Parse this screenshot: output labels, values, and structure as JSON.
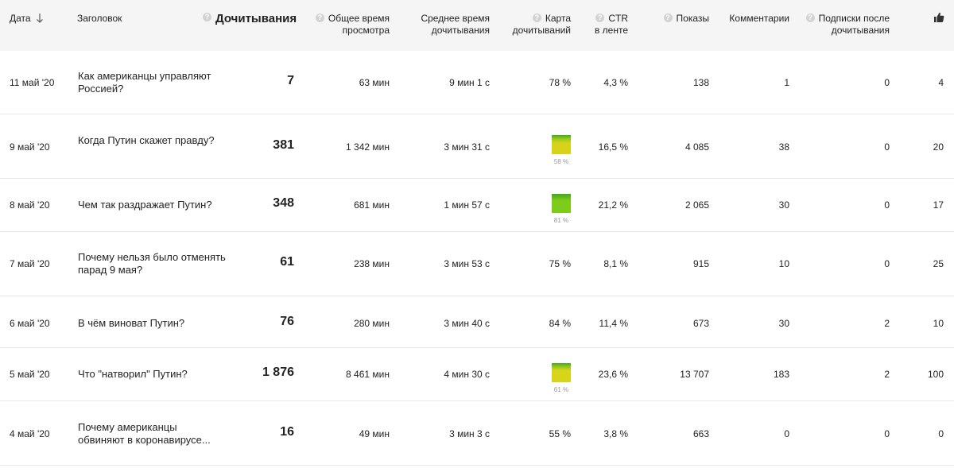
{
  "headers": {
    "date": "Дата",
    "title": "Заголовок",
    "reads": "Дочитывания",
    "total_time_1": "Общее время",
    "total_time_2": "просмотра",
    "avg_time_1": "Среднее время",
    "avg_time_2": "дочитывания",
    "map_1": "Карта",
    "map_2": "дочитываний",
    "ctr_1": "CTR",
    "ctr_2": "в ленте",
    "views": "Показы",
    "comments": "Комментарии",
    "subs_1": "Подписки после",
    "subs_2": "дочитывания",
    "help_mark": "?"
  },
  "colors": {
    "header_bg": "#f5f5f5",
    "map_58": "#d9d21a",
    "map_81": "#7dcc1a",
    "map_61": "#d8d41a"
  },
  "rows": [
    {
      "date": "11 май '20",
      "title": "Как американцы управляют Россией?",
      "reads": "7",
      "total_time": "63 мин",
      "avg_time": "9 мин 1 с",
      "map": "78 %",
      "map_pct": "",
      "ctr": "4,3 %",
      "views": "138",
      "comments": "1",
      "subs": "0",
      "likes": "4"
    },
    {
      "date": "9 май '20",
      "title": "Когда Путин скажет правду?",
      "reads": "381",
      "total_time": "1 342 мин",
      "avg_time": "3 мин 31 с",
      "map": "",
      "map_pct": "58 %",
      "ctr": "16,5 %",
      "views": "4 085",
      "comments": "38",
      "subs": "0",
      "likes": "20"
    },
    {
      "date": "8 май '20",
      "title": "Чем так раздражает Путин?",
      "reads": "348",
      "total_time": "681 мин",
      "avg_time": "1 мин 57 с",
      "map": "",
      "map_pct": "81 %",
      "ctr": "21,2 %",
      "views": "2 065",
      "comments": "30",
      "subs": "0",
      "likes": "17"
    },
    {
      "date": "7 май '20",
      "title": "Почему нельзя было отменять парад 9 мая?",
      "reads": "61",
      "total_time": "238 мин",
      "avg_time": "3 мин 53 с",
      "map": "75 %",
      "map_pct": "",
      "ctr": "8,1 %",
      "views": "915",
      "comments": "10",
      "subs": "0",
      "likes": "25"
    },
    {
      "date": "6 май '20",
      "title": "В чём виноват Путин?",
      "reads": "76",
      "total_time": "280 мин",
      "avg_time": "3 мин 40 с",
      "map": "84 %",
      "map_pct": "",
      "ctr": "11,4 %",
      "views": "673",
      "comments": "30",
      "subs": "2",
      "likes": "10"
    },
    {
      "date": "5 май '20",
      "title": "Что \"натворил\" Путин?",
      "reads": "1 876",
      "total_time": "8 461 мин",
      "avg_time": "4 мин 30 с",
      "map": "",
      "map_pct": "61 %",
      "ctr": "23,6 %",
      "views": "13 707",
      "comments": "183",
      "subs": "2",
      "likes": "100"
    },
    {
      "date": "4 май '20",
      "title": "Почему американцы обвиняют в коронавирусе...",
      "reads": "16",
      "total_time": "49 мин",
      "avg_time": "3 мин 3 с",
      "map": "55 %",
      "map_pct": "",
      "ctr": "3,8 %",
      "views": "663",
      "comments": "0",
      "subs": "0",
      "likes": "0"
    }
  ]
}
